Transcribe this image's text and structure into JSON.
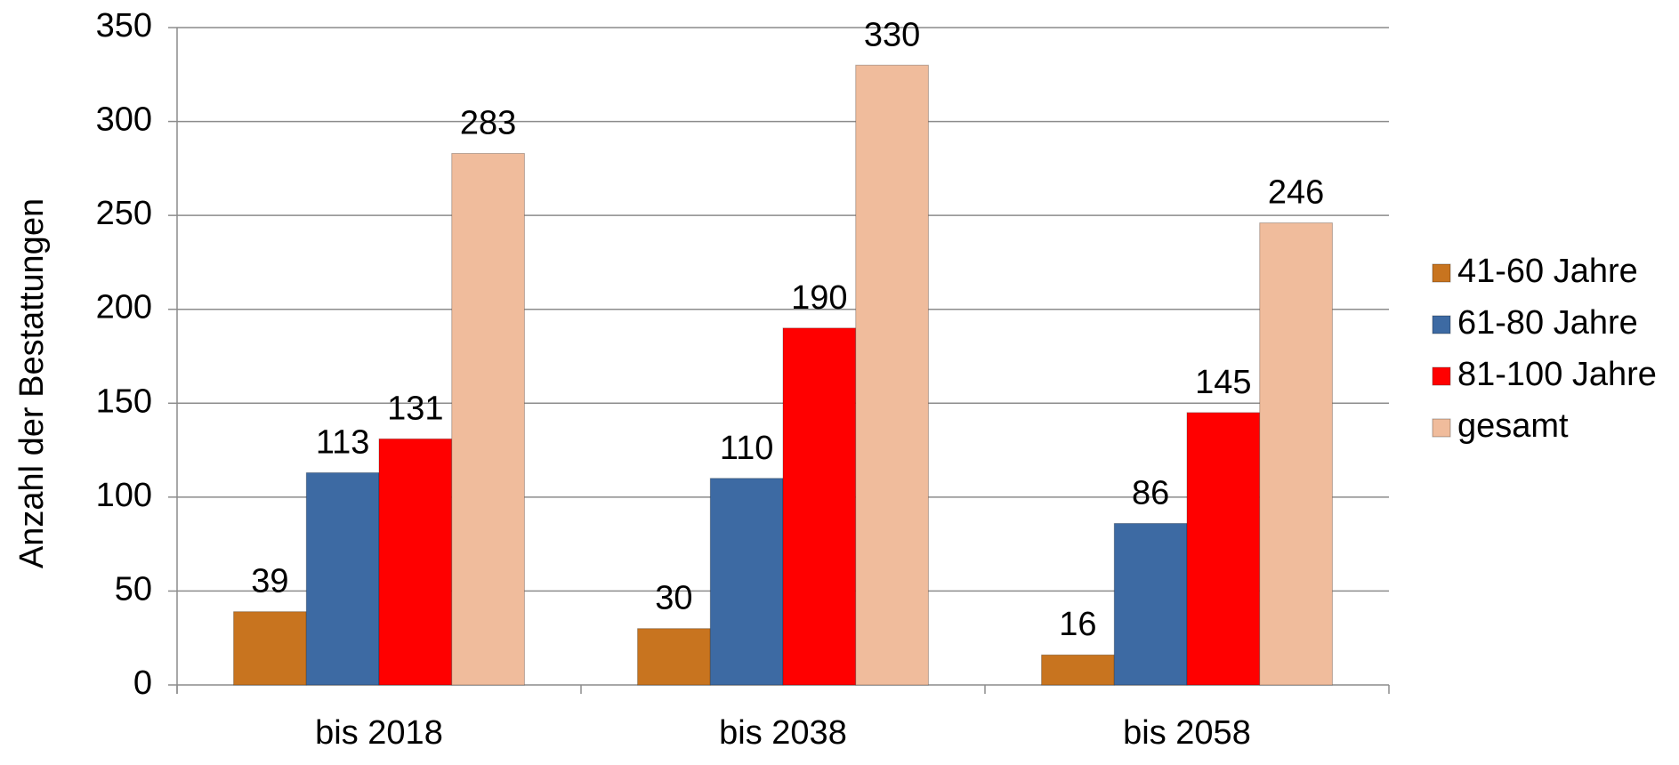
{
  "chart_data": {
    "type": "bar",
    "y_label": "Anzahl der Bestattungen",
    "categories": [
      "bis 2018",
      "bis 2038",
      "bis 2058"
    ],
    "series": [
      {
        "name": "41-60 Jahre",
        "color": "#c8741f",
        "values": [
          39,
          30,
          16
        ]
      },
      {
        "name": "61-80 Jahre",
        "color": "#3d6aa3",
        "values": [
          113,
          110,
          86
        ]
      },
      {
        "name": "81-100 Jahre",
        "color": "#ff0000",
        "values": [
          131,
          190,
          145
        ]
      },
      {
        "name": "gesamt",
        "color": "#f0bc9c",
        "values": [
          283,
          330,
          246
        ]
      }
    ],
    "ylim": [
      0,
      350
    ],
    "yticks": [
      0,
      50,
      100,
      150,
      200,
      250,
      300,
      350
    ],
    "grid": true,
    "legend": "right"
  }
}
